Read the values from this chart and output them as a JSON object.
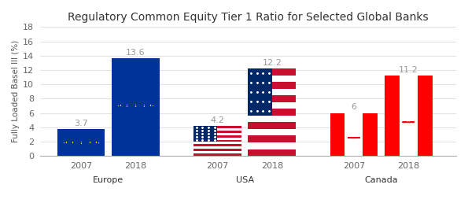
{
  "title": "Regulatory Common Equity Tier 1 Ratio for Selected Global Banks",
  "ylabel": "Fully Loaded Basel III (%)",
  "groups": [
    "Europe",
    "USA",
    "Canada"
  ],
  "values": {
    "Europe": [
      3.7,
      13.6
    ],
    "USA": [
      4.2,
      12.2
    ],
    "Canada": [
      6.0,
      11.2
    ]
  },
  "ylim": [
    0,
    18
  ],
  "yticks": [
    0,
    2,
    4,
    6,
    8,
    10,
    12,
    14,
    16,
    18
  ],
  "eu_blue": "#003399",
  "eu_star_color": "#FFCC00",
  "usa_red": "#C8102E",
  "usa_blue": "#002868",
  "usa_white": "#FFFFFF",
  "canada_red": "#FF0000",
  "canada_white": "#FFFFFF",
  "label_color": "#999999",
  "label_fontsize": 8,
  "title_fontsize": 10,
  "axis_label_fontsize": 7.5,
  "tick_fontsize": 8,
  "background_color": "#FFFFFF",
  "grid_color": "#dddddd",
  "bar_width": 0.28,
  "group_centers": [
    0.38,
    1.18,
    1.98
  ],
  "bar_gap": 0.04
}
